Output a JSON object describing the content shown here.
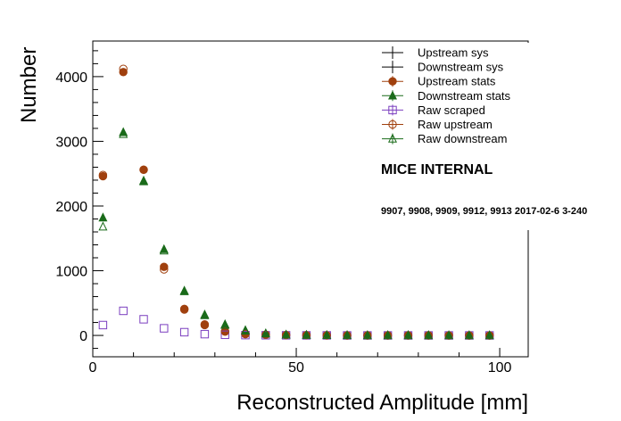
{
  "chart_data": {
    "type": "scatter",
    "xlabel": "Reconstructed Amplitude [mm]",
    "ylabel": "Number",
    "xlim": [
      0,
      107
    ],
    "ylim": [
      -330,
      4550
    ],
    "xticks": [
      0,
      50,
      100
    ],
    "yticks": [
      0,
      1000,
      2000,
      3000,
      4000
    ],
    "grid": false,
    "legend_position": "top-right",
    "annotations": {
      "title": "MICE INTERNAL",
      "subtitle": "9907, 9908, 9909, 9912, 9913 2017-02-6 3-240"
    },
    "x": [
      2.5,
      7.5,
      12.5,
      17.5,
      22.5,
      27.5,
      32.5,
      37.5,
      42.5,
      47.5,
      52.5,
      57.5,
      62.5,
      67.5,
      72.5,
      77.5,
      82.5,
      87.5,
      92.5,
      97.5
    ],
    "series": [
      {
        "name": "Upstream sys",
        "marker": "cross",
        "color": "#000000",
        "values": []
      },
      {
        "name": "Downstream sys",
        "marker": "cross",
        "color": "#000000",
        "values": []
      },
      {
        "name": "Upstream stats",
        "marker": "filled-circle",
        "color": "#a0400e",
        "values": [
          2460,
          4070,
          2560,
          1060,
          410,
          170,
          60,
          20,
          10,
          5,
          3,
          2,
          1,
          1,
          1,
          1,
          1,
          0,
          0,
          0
        ]
      },
      {
        "name": "Downstream stats",
        "marker": "filled-triangle",
        "color": "#1a6b1a",
        "values": [
          1820,
          3140,
          2380,
          1330,
          690,
          320,
          170,
          80,
          30,
          10,
          5,
          3,
          2,
          1,
          1,
          1,
          1,
          0,
          0,
          0
        ]
      },
      {
        "name": "Raw scraped",
        "marker": "open-square",
        "color": "#7b3fbf",
        "values": [
          160,
          380,
          250,
          110,
          50,
          20,
          10,
          5,
          3,
          2,
          1,
          1,
          0,
          0,
          0,
          0,
          0,
          0,
          0,
          0
        ]
      },
      {
        "name": "Raw upstream",
        "marker": "open-circle",
        "color": "#a0400e",
        "values": [
          2480,
          4120,
          2560,
          1020,
          400,
          160,
          60,
          20,
          10,
          5,
          3,
          2,
          1,
          1,
          1,
          1,
          1,
          0,
          0,
          0
        ]
      },
      {
        "name": "Raw downstream",
        "marker": "open-triangle",
        "color": "#1a6b1a",
        "values": [
          1680,
          3110,
          2390,
          1310,
          680,
          310,
          160,
          70,
          30,
          10,
          5,
          3,
          2,
          1,
          1,
          1,
          1,
          0,
          0,
          0
        ]
      }
    ]
  }
}
